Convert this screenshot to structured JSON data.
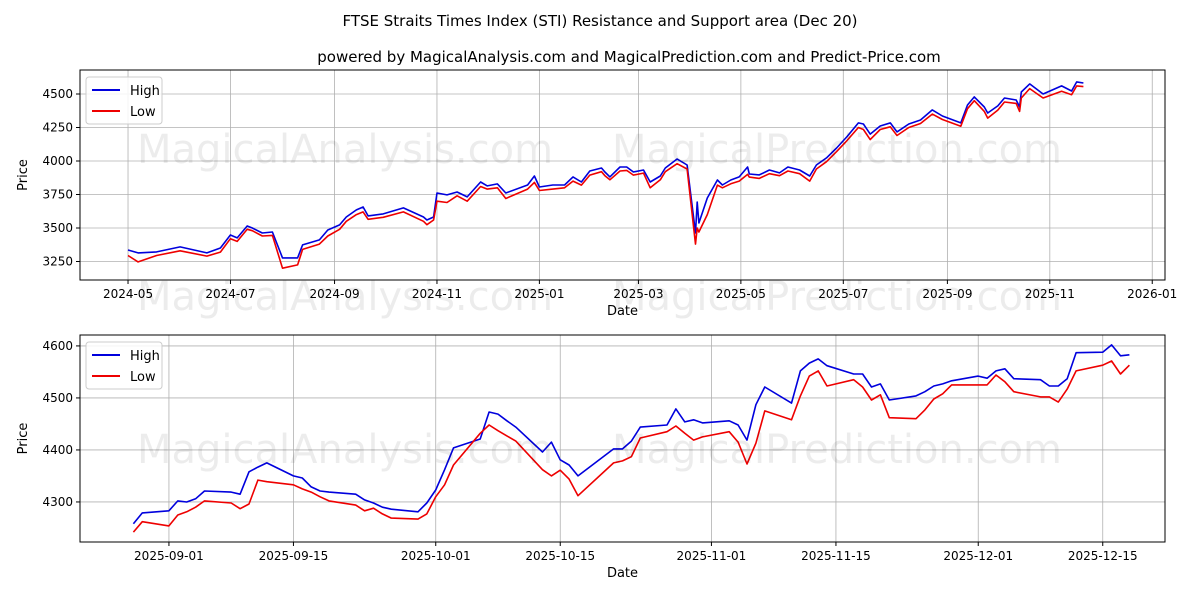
{
  "title": "FTSE Straits Times Index (STI) Resistance and Support area (Dec 20)",
  "subtitle": "powered by MagicalAnalysis.com and MagicalPrediction.com and Predict-Price.com",
  "watermarks": [
    "MagicalAnalysis.com",
    "MagicalPrediction.com"
  ],
  "colors": {
    "high": "#0000dd",
    "low": "#ee0000"
  },
  "chart_data": [
    {
      "type": "line",
      "xlabel": "Date",
      "ylabel": "Price",
      "x_unit": "days since 2024-05-01",
      "xlim": [
        -28.6,
        617.6
      ],
      "ylim": [
        3112,
        4679
      ],
      "grid": true,
      "legend": "top-left",
      "x_ticks": [
        {
          "v": 0,
          "label": "2024-05"
        },
        {
          "v": 61,
          "label": "2024-07"
        },
        {
          "v": 123,
          "label": "2024-09"
        },
        {
          "v": 184,
          "label": "2024-11"
        },
        {
          "v": 245,
          "label": "2025-01"
        },
        {
          "v": 304,
          "label": "2025-03"
        },
        {
          "v": 365,
          "label": "2025-05"
        },
        {
          "v": 426,
          "label": "2025-07"
        },
        {
          "v": 488,
          "label": "2025-09"
        },
        {
          "v": 549,
          "label": "2025-11"
        },
        {
          "v": 610,
          "label": "2026-01"
        }
      ],
      "y_ticks": [
        {
          "v": 3250,
          "label": "3250"
        },
        {
          "v": 3500,
          "label": "3500"
        },
        {
          "v": 3750,
          "label": "3750"
        },
        {
          "v": 4000,
          "label": "4000"
        },
        {
          "v": 4250,
          "label": "4250"
        },
        {
          "v": 4500,
          "label": "4500"
        }
      ],
      "x": [
        0,
        6,
        17,
        31,
        47,
        55,
        61,
        65,
        71,
        74,
        80,
        86,
        92,
        101,
        104,
        114,
        119,
        126,
        130,
        136,
        140,
        143,
        152,
        164,
        176,
        178,
        182,
        184,
        190,
        196,
        202,
        210,
        214,
        220,
        225,
        238,
        242,
        245,
        253,
        260,
        265,
        270,
        275,
        282,
        284,
        287,
        293,
        297,
        301,
        307,
        311,
        317,
        320,
        327,
        333,
        338,
        339,
        340,
        345,
        351,
        354,
        359,
        364,
        369,
        370,
        376,
        382,
        388,
        393,
        400,
        406,
        410,
        416,
        422,
        428,
        435,
        438,
        442,
        448,
        454,
        458,
        465,
        472,
        479,
        485,
        496,
        500,
        504,
        510,
        512,
        518,
        522,
        529,
        531,
        532,
        537,
        545,
        556,
        562,
        565,
        569
      ],
      "series": [
        {
          "name": "High",
          "values": [
            3336,
            3314,
            3322,
            3359,
            3314,
            3351,
            3448,
            3426,
            3515,
            3500,
            3463,
            3470,
            3277,
            3277,
            3374,
            3411,
            3485,
            3523,
            3582,
            3635,
            3657,
            3590,
            3605,
            3650,
            3582,
            3560,
            3582,
            3761,
            3747,
            3769,
            3732,
            3843,
            3814,
            3829,
            3761,
            3821,
            3888,
            3806,
            3821,
            3821,
            3881,
            3843,
            3925,
            3948,
            3918,
            3881,
            3955,
            3955,
            3918,
            3933,
            3843,
            3888,
            3948,
            4015,
            3970,
            3463,
            3694,
            3537,
            3724,
            3858,
            3821,
            3858,
            3881,
            3955,
            3903,
            3896,
            3933,
            3911,
            3955,
            3933,
            3888,
            3970,
            4023,
            4097,
            4179,
            4284,
            4276,
            4201,
            4261,
            4284,
            4217,
            4276,
            4306,
            4381,
            4336,
            4284,
            4418,
            4478,
            4403,
            4358,
            4411,
            4470,
            4455,
            4403,
            4515,
            4575,
            4500,
            4560,
            4522,
            4590,
            4582
          ]
        },
        {
          "name": "Low",
          "values": [
            3295,
            3247,
            3295,
            3330,
            3290,
            3320,
            3420,
            3400,
            3490,
            3480,
            3440,
            3445,
            3200,
            3225,
            3340,
            3380,
            3440,
            3490,
            3550,
            3600,
            3620,
            3565,
            3580,
            3620,
            3550,
            3525,
            3560,
            3700,
            3690,
            3740,
            3700,
            3810,
            3790,
            3800,
            3720,
            3790,
            3840,
            3780,
            3790,
            3800,
            3850,
            3820,
            3895,
            3920,
            3890,
            3860,
            3925,
            3930,
            3895,
            3910,
            3800,
            3860,
            3920,
            3980,
            3940,
            3380,
            3500,
            3470,
            3600,
            3820,
            3800,
            3830,
            3850,
            3900,
            3880,
            3870,
            3905,
            3890,
            3925,
            3905,
            3850,
            3940,
            3995,
            4070,
            4150,
            4250,
            4235,
            4160,
            4235,
            4255,
            4190,
            4250,
            4280,
            4350,
            4310,
            4260,
            4390,
            4450,
            4370,
            4320,
            4380,
            4440,
            4430,
            4370,
            4470,
            4540,
            4470,
            4520,
            4495,
            4560,
            4555
          ]
        }
      ]
    },
    {
      "type": "line",
      "xlabel": "Date",
      "ylabel": "Price",
      "x_unit": "date",
      "xlim": [
        "2025-08-22",
        "2025-12-22"
      ],
      "ylim": [
        4223,
        4621
      ],
      "grid": true,
      "legend": "top-left",
      "x_ticks": [
        {
          "v": "2025-09-01",
          "label": "2025-09-01"
        },
        {
          "v": "2025-09-15",
          "label": "2025-09-15"
        },
        {
          "v": "2025-10-01",
          "label": "2025-10-01"
        },
        {
          "v": "2025-10-15",
          "label": "2025-10-15"
        },
        {
          "v": "2025-11-01",
          "label": "2025-11-01"
        },
        {
          "v": "2025-11-15",
          "label": "2025-11-15"
        },
        {
          "v": "2025-12-01",
          "label": "2025-12-01"
        },
        {
          "v": "2025-12-15",
          "label": "2025-12-15"
        }
      ],
      "y_ticks": [
        {
          "v": 4300,
          "label": "4300"
        },
        {
          "v": 4400,
          "label": "4400"
        },
        {
          "v": 4500,
          "label": "4500"
        },
        {
          "v": 4600,
          "label": "4600"
        }
      ],
      "x": [
        "2025-08-28",
        "2025-08-29",
        "2025-09-01",
        "2025-09-02",
        "2025-09-03",
        "2025-09-04",
        "2025-09-05",
        "2025-09-08",
        "2025-09-09",
        "2025-09-10",
        "2025-09-11",
        "2025-09-12",
        "2025-09-15",
        "2025-09-16",
        "2025-09-17",
        "2025-09-18",
        "2025-09-19",
        "2025-09-22",
        "2025-09-23",
        "2025-09-24",
        "2025-09-25",
        "2025-09-26",
        "2025-09-29",
        "2025-09-30",
        "2025-10-01",
        "2025-10-02",
        "2025-10-03",
        "2025-10-06",
        "2025-10-07",
        "2025-10-08",
        "2025-10-09",
        "2025-10-10",
        "2025-10-13",
        "2025-10-14",
        "2025-10-15",
        "2025-10-16",
        "2025-10-17",
        "2025-10-21",
        "2025-10-22",
        "2025-10-23",
        "2025-10-24",
        "2025-10-27",
        "2025-10-28",
        "2025-10-29",
        "2025-10-30",
        "2025-10-31",
        "2025-11-03",
        "2025-11-04",
        "2025-11-05",
        "2025-11-06",
        "2025-11-07",
        "2025-11-10",
        "2025-11-11",
        "2025-11-12",
        "2025-11-13",
        "2025-11-14",
        "2025-11-17",
        "2025-11-18",
        "2025-11-19",
        "2025-11-20",
        "2025-11-21",
        "2025-11-24",
        "2025-11-25",
        "2025-11-26",
        "2025-11-27",
        "2025-11-28",
        "2025-12-01",
        "2025-12-02",
        "2025-12-03",
        "2025-12-04",
        "2025-12-05",
        "2025-12-08",
        "2025-12-09",
        "2025-12-10",
        "2025-12-11",
        "2025-12-12",
        "2025-12-15",
        "2025-12-16",
        "2025-12-17",
        "2025-12-18"
      ],
      "series": [
        {
          "name": "High",
          "values": [
            4258,
            4279,
            4283,
            4302,
            4300,
            4306,
            4321,
            4319,
            4315,
            4358,
            4367,
            4375,
            4350,
            4346,
            4329,
            4321,
            4319,
            4315,
            4304,
            4298,
            4290,
            4286,
            4281,
            4298,
            4323,
            4362,
            4404,
            4421,
            4473,
            4469,
            4456,
            4444,
            4396,
            4415,
            4381,
            4371,
            4350,
            4402,
            4402,
            4417,
            4444,
            4448,
            4479,
            4454,
            4458,
            4452,
            4456,
            4448,
            4419,
            4487,
            4521,
            4490,
            4552,
            4567,
            4575,
            4562,
            4546,
            4546,
            4521,
            4527,
            4496,
            4504,
            4512,
            4523,
            4527,
            4533,
            4542,
            4538,
            4552,
            4556,
            4537,
            4535,
            4523,
            4523,
            4537,
            4587,
            4588,
            4602,
            4581,
            4583
          ]
        },
        {
          "name": "Low",
          "values": [
            4242,
            4262,
            4254,
            4275,
            4281,
            4290,
            4302,
            4298,
            4287,
            4296,
            4342,
            4339,
            4333,
            4325,
            4319,
            4310,
            4302,
            4294,
            4283,
            4288,
            4277,
            4269,
            4267,
            4277,
            4310,
            4333,
            4371,
            4432,
            4448,
            4437,
            4427,
            4417,
            4362,
            4350,
            4361,
            4344,
            4312,
            4375,
            4379,
            4387,
            4423,
            4435,
            4446,
            4432,
            4419,
            4425,
            4435,
            4415,
            4373,
            4413,
            4475,
            4458,
            4504,
            4542,
            4552,
            4523,
            4535,
            4521,
            4496,
            4506,
            4462,
            4460,
            4477,
            4498,
            4508,
            4525,
            4525,
            4525,
            4544,
            4531,
            4512,
            4502,
            4502,
            4492,
            4517,
            4552,
            4563,
            4571,
            4546,
            4563
          ]
        }
      ]
    }
  ]
}
